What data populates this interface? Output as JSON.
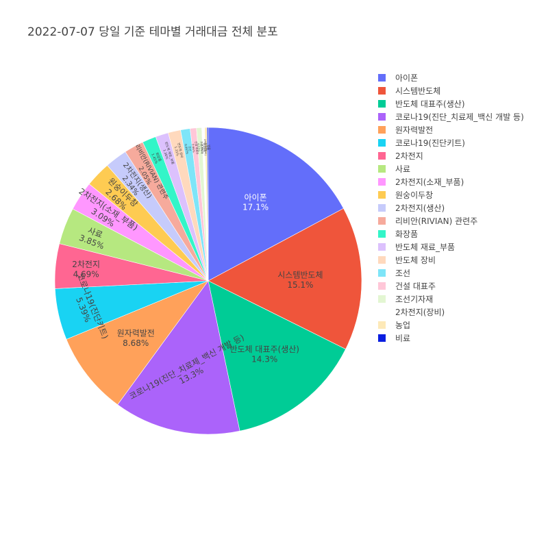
{
  "title": "2022-07-07 당일 기준 테마별 거래대금 전체 분포",
  "chart_data": {
    "type": "pie",
    "title": "2022-07-07 당일 기준 테마별 거래대금 전체 분포",
    "legend_position": "right",
    "direction": "clockwise",
    "start": "12 o'clock",
    "slices": [
      {
        "label": "아이폰",
        "value": 17.1,
        "text": "17.1%",
        "color": "#636efa"
      },
      {
        "label": "시스템반도체",
        "value": 15.1,
        "text": "15.1%",
        "color": "#EF553B"
      },
      {
        "label": "반도체 대표주(생산)",
        "value": 14.3,
        "text": "14.3%",
        "color": "#00cc96"
      },
      {
        "label": "코로나19(진단_치료제_백신 개발 등)",
        "value": 13.3,
        "text": "13.3%",
        "color": "#ab63fa"
      },
      {
        "label": "원자력발전",
        "value": 8.68,
        "text": "8.68%",
        "color": "#FFA15A"
      },
      {
        "label": "코로나19(진단키트)",
        "value": 5.39,
        "text": "5.39%",
        "color": "#19d3f3"
      },
      {
        "label": "2차전지",
        "value": 4.69,
        "text": "4.69%",
        "color": "#FF6692"
      },
      {
        "label": "사료",
        "value": 3.85,
        "text": "3.85%",
        "color": "#B6E880"
      },
      {
        "label": "2차전지(소재_부품)",
        "value": 3.09,
        "text": "3.09%",
        "color": "#FF97FF"
      },
      {
        "label": "원숭이두창",
        "value": 2.68,
        "text": "2.68%",
        "color": "#FECB52"
      },
      {
        "label": "2차전지(생산)",
        "value": 2.34,
        "text": "2.34%",
        "color": "#c6cbfb"
      },
      {
        "label": "리비안(RIVIAN) 관련주",
        "value": 2.05,
        "text": "2.05%",
        "color": "#f6aa9c"
      },
      {
        "label": "화장품",
        "value": 1.45,
        "text": "1.45%",
        "color": "#33f5c8"
      },
      {
        "label": "반도체 재료_부품",
        "value": 1.36,
        "text": "1.36%",
        "color": "#dcc1fd"
      },
      {
        "label": "반도체 장비",
        "value": 1.31,
        "text": "1.31%",
        "color": "#ffd9bd"
      },
      {
        "label": "조선",
        "value": 0.997,
        "text": "0.997%",
        "color": "#7ee5f8"
      },
      {
        "label": "건설 대표주",
        "value": 0.66,
        "text": "0.66%",
        "color": "#ffc7d8"
      },
      {
        "label": "조선기자재",
        "value": 0.55,
        "text": "0.55%",
        "color": "#e3f6d2"
      },
      {
        "label": "2차전지(장비)",
        "value": 0.3,
        "text": "0.3%",
        "color": "#ffffff"
      },
      {
        "label": "농업",
        "value": 0.25,
        "text": "0.25%",
        "color": "#fde9b8"
      },
      {
        "label": "비료",
        "value": 0.12,
        "text": "0.12%",
        "color": "#0a1ee0"
      }
    ]
  }
}
